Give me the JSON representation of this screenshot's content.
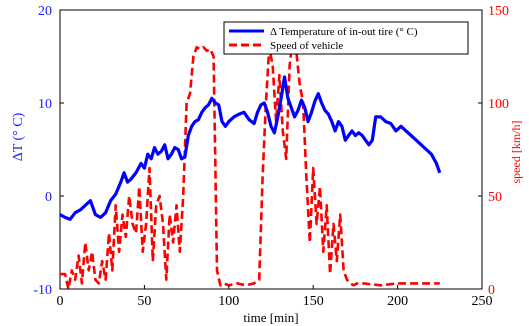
{
  "chart_data": {
    "type": "line",
    "xlabel": "time [min]",
    "ylabel_left": "ΔT (° C)",
    "ylabel_right": "speed [km/h]",
    "xlim": [
      0,
      250
    ],
    "ylim_left": [
      -10,
      20
    ],
    "ylim_right": [
      0,
      150
    ],
    "x_ticks": [
      "0",
      "50",
      "100",
      "150",
      "200",
      "250"
    ],
    "y_ticks_left": [
      "-10",
      "0",
      "10",
      "20"
    ],
    "y_ticks_right": [
      "0",
      "50",
      "100",
      "150"
    ],
    "legend_position": "top-right",
    "grid": false,
    "colors": {
      "temperature": "#0000ff",
      "speed": "#ff0000",
      "left_axis": "#1a1aff",
      "right_axis": "#ff0000"
    },
    "series": [
      {
        "name": "Δ Temperature of in-out tire (° C)",
        "axis": "left",
        "style": "solid",
        "x": [
          0,
          3,
          6,
          9,
          12,
          15,
          18,
          21,
          24,
          27,
          30,
          33,
          36,
          38,
          40,
          42,
          45,
          48,
          50,
          52,
          54,
          56,
          58,
          60,
          62,
          64,
          66,
          68,
          70,
          72,
          74,
          76,
          78,
          80,
          82,
          84,
          86,
          88,
          90,
          92,
          94,
          96,
          98,
          100,
          103,
          106,
          109,
          112,
          115,
          117,
          119,
          121,
          123,
          125,
          127,
          129,
          131,
          133,
          135,
          137,
          139,
          141,
          143,
          145,
          147,
          149,
          151,
          153,
          155,
          157,
          159,
          161,
          163,
          165,
          167,
          169,
          171,
          173,
          175,
          177,
          179,
          181,
          183,
          185,
          187,
          190,
          193,
          196,
          199,
          202,
          205,
          208,
          211,
          214,
          217,
          220,
          223,
          225
        ],
        "y": [
          -2,
          -2.3,
          -2.5,
          -1.8,
          -1.5,
          -1,
          -0.5,
          -2,
          -2.3,
          -1.8,
          -0.5,
          0.2,
          1.5,
          2.5,
          1.5,
          1.8,
          2.5,
          3.5,
          3,
          4.5,
          4,
          5.2,
          4.5,
          4.8,
          5.5,
          4,
          4.5,
          5.2,
          5,
          4,
          4.2,
          6.5,
          7.5,
          8,
          8.2,
          9,
          9.5,
          9.8,
          10.5,
          10,
          9.8,
          8,
          7.5,
          8,
          8.5,
          8.8,
          9,
          8.2,
          7.8,
          9,
          9.8,
          10,
          9,
          7.5,
          6.8,
          8.5,
          10.5,
          12.8,
          10.5,
          9.5,
          8.5,
          9.2,
          10.3,
          9.5,
          8,
          9,
          10.2,
          11,
          10,
          9.2,
          8.8,
          8,
          7,
          8,
          7.5,
          6,
          6.5,
          7,
          6.5,
          6.8,
          6.5,
          6,
          5.5,
          6,
          8.5,
          8.5,
          8,
          7.8,
          7,
          7.5,
          7,
          6.5,
          6,
          5.5,
          5,
          4.5,
          3.5,
          2.5
        ]
      },
      {
        "name": "Speed of vehicle",
        "axis": "right",
        "style": "dashed",
        "x": [
          0,
          3,
          5,
          7,
          9,
          11,
          13,
          15,
          17,
          19,
          21,
          23,
          25,
          27,
          29,
          31,
          33,
          35,
          37,
          39,
          41,
          43,
          45,
          47,
          49,
          51,
          53,
          55,
          57,
          59,
          61,
          63,
          65,
          67,
          69,
          71,
          73,
          75,
          77,
          79,
          81,
          83,
          85,
          87,
          89,
          91,
          93,
          95,
          97,
          100,
          105,
          110,
          115,
          118,
          120,
          122,
          124,
          126,
          128,
          130,
          132,
          134,
          136,
          138,
          140,
          142,
          144,
          146,
          148,
          150,
          152,
          154,
          156,
          158,
          160,
          162,
          164,
          166,
          168,
          170,
          172,
          174,
          176,
          180,
          190,
          200,
          210,
          220,
          225
        ],
        "y": [
          8,
          8,
          0,
          10,
          5,
          18,
          3,
          25,
          10,
          20,
          5,
          3,
          15,
          5,
          30,
          10,
          45,
          20,
          40,
          28,
          50,
          35,
          30,
          55,
          20,
          35,
          65,
          15,
          45,
          50,
          35,
          5,
          40,
          25,
          45,
          20,
          50,
          100,
          105,
          125,
          130,
          129,
          130,
          128,
          129,
          125,
          10,
          2,
          3,
          2,
          3,
          2,
          3,
          5,
          60,
          100,
          130,
          120,
          90,
          115,
          85,
          70,
          120,
          135,
          128,
          110,
          100,
          60,
          25,
          65,
          35,
          55,
          20,
          45,
          8,
          35,
          15,
          40,
          10,
          5,
          3,
          2,
          3,
          3,
          2,
          3,
          3,
          3,
          3
        ]
      }
    ]
  }
}
